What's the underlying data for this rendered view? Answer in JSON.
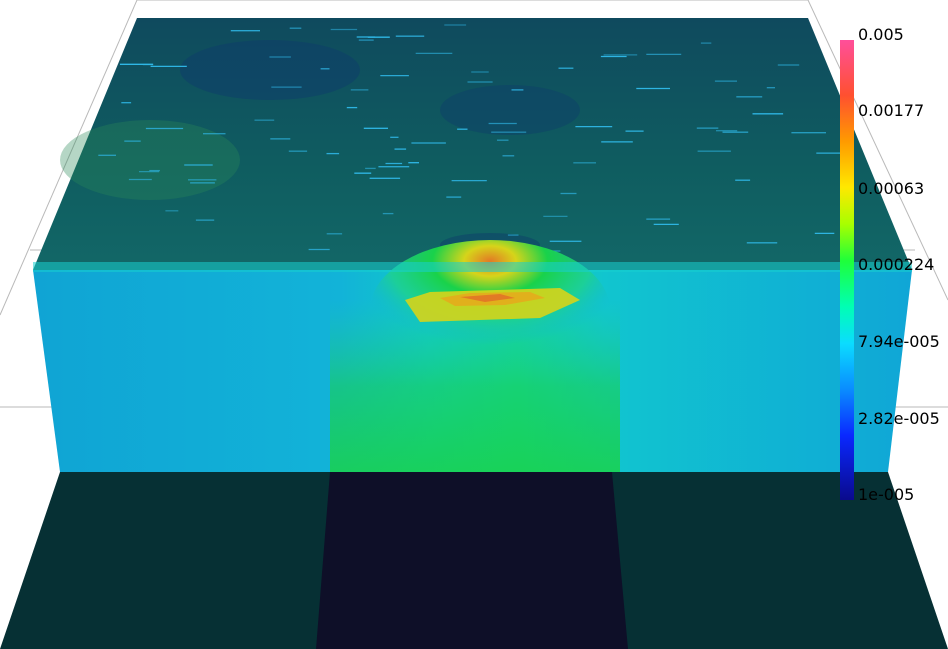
{
  "scene": {
    "background": "#ffffff",
    "top_surface_color": "#0f5a5e",
    "front_face_color": "#12a9d6",
    "base_side_color": "#063034",
    "base_center_color": "#0e0f28",
    "hotspot_colors": [
      "#1fd28c",
      "#19d24a",
      "#8fd31e",
      "#d6d41a",
      "#e1b01c",
      "#e27a25"
    ],
    "wireframe_color": "#b9b9b9"
  },
  "colorbar": {
    "scale": "log",
    "range": [
      1e-05,
      0.005
    ],
    "labels": [
      "0.005",
      "0.00177",
      "0.00063",
      "0.000224",
      "7.94e-005",
      "2.82e-005",
      "1e-005"
    ],
    "stops": [
      "#ff4f9a",
      "#ff5030",
      "#ff9a00",
      "#ffe800",
      "#a8ff00",
      "#1eff3a",
      "#00ffb4",
      "#0bdcff",
      "#0a8cff",
      "#0a28ff",
      "#0a0a8c"
    ]
  }
}
